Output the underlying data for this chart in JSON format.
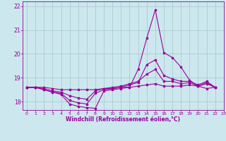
{
  "xlabel": "Windchill (Refroidissement éolien,°C)",
  "xlim": [
    -0.5,
    23
  ],
  "ylim": [
    17.65,
    22.2
  ],
  "xticks": [
    0,
    1,
    2,
    3,
    4,
    5,
    6,
    7,
    8,
    9,
    10,
    11,
    12,
    13,
    14,
    15,
    16,
    17,
    18,
    19,
    20,
    21,
    22,
    23
  ],
  "yticks": [
    18,
    19,
    20,
    21,
    22
  ],
  "background_color": "#cce8ee",
  "line_color": "#990099",
  "grid_color": "#aacccc",
  "series": [
    [
      18.6,
      18.6,
      18.5,
      18.4,
      18.3,
      17.9,
      17.8,
      17.75,
      17.72,
      18.45,
      18.5,
      18.55,
      18.6,
      19.35,
      20.65,
      21.85,
      20.05,
      19.85,
      19.45,
      18.9,
      18.65,
      18.55,
      18.6
    ],
    [
      18.6,
      18.6,
      18.5,
      18.4,
      18.35,
      18.05,
      17.95,
      17.9,
      18.35,
      18.5,
      18.55,
      18.6,
      18.7,
      18.8,
      19.55,
      19.75,
      19.1,
      18.95,
      18.85,
      18.85,
      18.7,
      18.85,
      18.6
    ],
    [
      18.6,
      18.6,
      18.55,
      18.45,
      18.4,
      18.25,
      18.15,
      18.1,
      18.45,
      18.55,
      18.6,
      18.65,
      18.75,
      18.85,
      19.15,
      19.35,
      18.85,
      18.85,
      18.75,
      18.8,
      18.65,
      18.8,
      18.6
    ],
    [
      18.6,
      18.6,
      18.6,
      18.55,
      18.5,
      18.5,
      18.5,
      18.5,
      18.5,
      18.55,
      18.55,
      18.6,
      18.6,
      18.65,
      18.7,
      18.75,
      18.65,
      18.65,
      18.65,
      18.7,
      18.65,
      18.75,
      18.6
    ]
  ],
  "x_vals": [
    0,
    1,
    2,
    3,
    4,
    5,
    6,
    7,
    8,
    9,
    10,
    11,
    12,
    13,
    14,
    15,
    16,
    17,
    18,
    19,
    20,
    21,
    22
  ]
}
